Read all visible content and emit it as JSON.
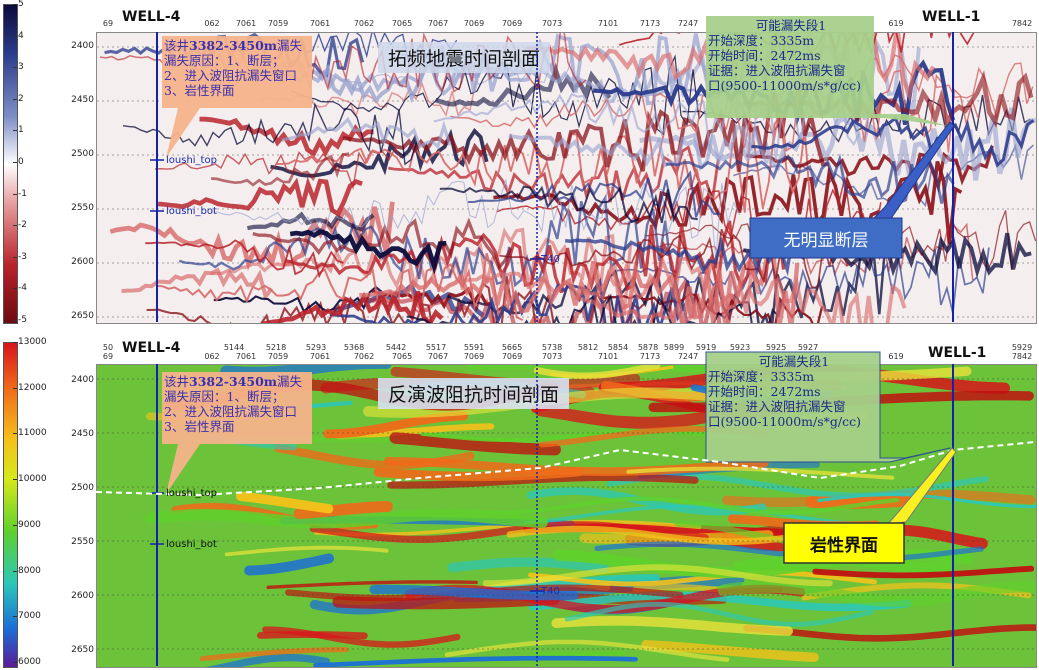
{
  "panels": [
    {
      "id": "seismic",
      "title": "拓频地震时间剖面",
      "colorbar": {
        "ticks": [
          "5",
          "4",
          "3",
          "2",
          "1",
          "0",
          "-1",
          "-2",
          "-3",
          "-4",
          "-5"
        ],
        "colors": [
          "#0b0b3a",
          "#2a3b8c",
          "#7d8ec6",
          "#ffffff",
          "#e7a0a0",
          "#b8222a",
          "#6d0a10"
        ]
      },
      "y_ticks": [
        "2400",
        "2450",
        "2500",
        "2550",
        "2600",
        "2650"
      ],
      "x_ticks": [
        "69",
        "062",
        "7061",
        "7059",
        "7061",
        "7062",
        "7065",
        "7067",
        "7069",
        "7069",
        "7073",
        "7101",
        "7173",
        "7247",
        "619",
        "7842"
      ],
      "x_ticks_row2": [],
      "well_left": "WELL-4",
      "well_right": "WELL-1",
      "callout_left": {
        "line1a": "该井",
        "line1b": "3382-3450m",
        "line1c": "漏失",
        "line2": "漏失原因：1、断层；",
        "line3": "2、进入波阻抗漏失窗口",
        "line4": "3、岩性界面"
      },
      "callout_right": {
        "title": "可能漏失段1",
        "line1": "开始深度：3335m",
        "line2": "开始时间：2472ms",
        "line3": "证据：进入波阻抗漏失窗",
        "line4": "口(9500-11000m/s*g/cc)"
      },
      "marker_top": "loushi_top",
      "marker_bot": "loushi_bot",
      "marker_t40": "T40",
      "annotation": "无明显断层"
    },
    {
      "id": "impedance",
      "title": "反演波阻抗时间剖面",
      "colorbar": {
        "ticks": [
          "13000",
          "12000",
          "11000",
          "10000",
          "9000",
          "8000",
          "7000",
          "6000"
        ],
        "colors": [
          "#d8141a",
          "#f06a1a",
          "#f5c21a",
          "#d6e81a",
          "#5fd12c",
          "#2bc8b8",
          "#1b6fd8",
          "#5a1a9a"
        ]
      },
      "y_ticks": [
        "2400",
        "2450",
        "2500",
        "2550",
        "2600",
        "2650"
      ],
      "x_ticks": [
        "69",
        "062",
        "7061",
        "7059",
        "7061",
        "7062",
        "7065",
        "7067",
        "7069",
        "7069",
        "7073",
        "7101",
        "7173",
        "7247",
        "619",
        "7842"
      ],
      "x_ticks_row2": [
        "50",
        "5144",
        "5218",
        "5293",
        "5368",
        "5442",
        "5517",
        "5591",
        "5665",
        "5738",
        "5812",
        "5854",
        "5878",
        "5899",
        "5919",
        "5923",
        "5925",
        "5927",
        "5929"
      ],
      "well_left": "WELL-4",
      "well_right": "WELL-1",
      "callout_left": {
        "line1a": "该井",
        "line1b": "3382-3450m",
        "line1c": "漏失",
        "line2": "漏失原因：1、断层；",
        "line3": "2、进入波阻抗漏失窗口",
        "line4": "3、岩性界面"
      },
      "callout_right": {
        "title": "可能漏失段1",
        "line1": "开始深度：3335m",
        "line2": "开始时间：2472ms",
        "line3": "证据：进入波阻抗漏失窗",
        "line4": "口(9500-11000m/s*g/cc)"
      },
      "marker_top": "loushi_top",
      "marker_bot": "loushi_bot",
      "marker_t40": "T40",
      "annotation": "岩性界面"
    }
  ]
}
